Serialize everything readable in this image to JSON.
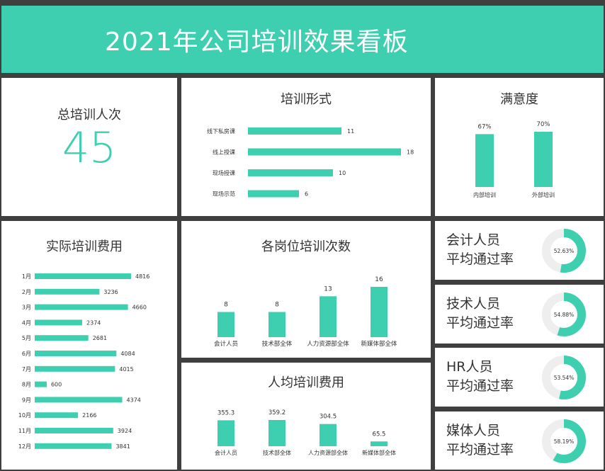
{
  "header": {
    "title": "2021年公司培训效果看板"
  },
  "colors": {
    "accent": "#3ecfb1",
    "track": "#eeeeee",
    "background": "#3f3f3f"
  },
  "total": {
    "label": "总培训人次",
    "value": "45"
  },
  "chart_data": [
    {
      "id": "forms",
      "type": "bar",
      "orientation": "horizontal",
      "title": "培训形式",
      "categories": [
        "线下私房课",
        "线上授课",
        "现场授课",
        "现场示范"
      ],
      "values": [
        11,
        18,
        10,
        6
      ]
    },
    {
      "id": "satisfaction",
      "type": "bar",
      "title": "满意度",
      "categories": [
        "内部培训",
        "外部培训"
      ],
      "values": [
        67,
        70
      ],
      "value_labels": [
        "67%",
        "70%"
      ]
    },
    {
      "id": "cost",
      "type": "bar",
      "orientation": "horizontal",
      "title": "实际培训费用",
      "categories": [
        "1月",
        "2月",
        "3月",
        "4月",
        "5月",
        "6月",
        "7月",
        "8月",
        "9月",
        "10月",
        "11月",
        "12月"
      ],
      "values": [
        4816,
        3236,
        4660,
        2374,
        2681,
        4084,
        4015,
        600,
        4374,
        2166,
        3924,
        3841
      ]
    },
    {
      "id": "positions",
      "type": "bar",
      "title": "各岗位培训次数",
      "categories": [
        "会计人员",
        "技术部全体",
        "人力资源部全体",
        "新媒体部全体"
      ],
      "values": [
        8,
        8,
        13,
        16
      ]
    },
    {
      "id": "percap",
      "type": "bar",
      "title": "人均培训费用",
      "categories": [
        "会计人员",
        "技术部全体",
        "人力资源部全体",
        "新媒体部全体"
      ],
      "values": [
        355.3,
        359.2,
        304.5,
        65.5
      ]
    },
    {
      "id": "rates",
      "type": "pie",
      "subtype": "donut",
      "items": [
        {
          "line1": "会计人员",
          "line2": "平均通过率",
          "value": 52.63,
          "label": "52.63%"
        },
        {
          "line1": "技术人员",
          "line2": "平均通过率",
          "value": 54.88,
          "label": "54.88%"
        },
        {
          "line1": "HR人员",
          "line2": "平均通过率",
          "value": 53.54,
          "label": "53.54%"
        },
        {
          "line1": "媒体人员",
          "line2": "平均通过率",
          "value": 58.19,
          "label": "58.19%"
        }
      ]
    }
  ]
}
